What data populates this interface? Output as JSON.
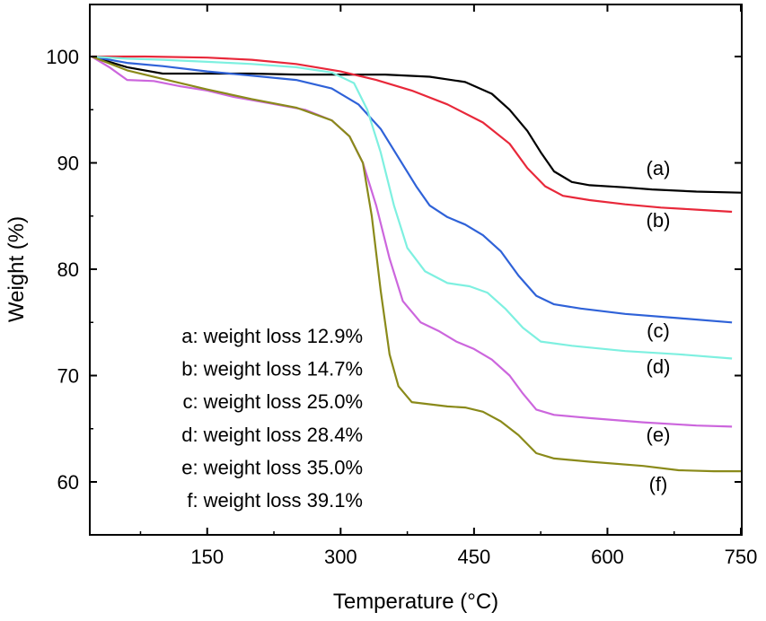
{
  "chart_data": {
    "type": "line",
    "xlabel": "Temperature (°C)",
    "ylabel": "Weight (%)",
    "xlim": [
      20,
      750
    ],
    "ylim": [
      57,
      105
    ],
    "xticks": [
      150,
      300,
      450,
      600,
      750
    ],
    "yticks": [
      60,
      70,
      80,
      90,
      100
    ],
    "grid": false,
    "series": [
      {
        "name": "(a)",
        "color": "#000000",
        "points": [
          [
            20,
            100
          ],
          [
            60,
            99
          ],
          [
            100,
            98.4
          ],
          [
            150,
            98.4
          ],
          [
            200,
            98.4
          ],
          [
            250,
            98.3
          ],
          [
            300,
            98.3
          ],
          [
            350,
            98.3
          ],
          [
            400,
            98.1
          ],
          [
            440,
            97.6
          ],
          [
            470,
            96.5
          ],
          [
            490,
            95
          ],
          [
            510,
            93
          ],
          [
            525,
            91
          ],
          [
            540,
            89.2
          ],
          [
            560,
            88.2
          ],
          [
            580,
            87.9
          ],
          [
            620,
            87.7
          ],
          [
            650,
            87.5
          ],
          [
            700,
            87.3
          ],
          [
            750,
            87.2
          ]
        ]
      },
      {
        "name": "(b)",
        "color": "#e8283a",
        "points": [
          [
            20,
            100
          ],
          [
            80,
            100
          ],
          [
            150,
            99.9
          ],
          [
            200,
            99.7
          ],
          [
            250,
            99.3
          ],
          [
            300,
            98.6
          ],
          [
            340,
            97.8
          ],
          [
            380,
            96.8
          ],
          [
            420,
            95.5
          ],
          [
            460,
            93.8
          ],
          [
            490,
            91.8
          ],
          [
            510,
            89.5
          ],
          [
            530,
            87.8
          ],
          [
            550,
            86.9
          ],
          [
            580,
            86.5
          ],
          [
            620,
            86.1
          ],
          [
            660,
            85.8
          ],
          [
            700,
            85.6
          ],
          [
            740,
            85.4
          ]
        ]
      },
      {
        "name": "(c)",
        "color": "#2f62d8",
        "points": [
          [
            20,
            100
          ],
          [
            60,
            99.4
          ],
          [
            100,
            99.1
          ],
          [
            150,
            98.6
          ],
          [
            200,
            98.2
          ],
          [
            250,
            97.8
          ],
          [
            290,
            97
          ],
          [
            320,
            95.5
          ],
          [
            345,
            93.2
          ],
          [
            365,
            90.5
          ],
          [
            385,
            87.8
          ],
          [
            400,
            86
          ],
          [
            420,
            84.9
          ],
          [
            440,
            84.2
          ],
          [
            460,
            83.2
          ],
          [
            480,
            81.7
          ],
          [
            500,
            79.4
          ],
          [
            520,
            77.5
          ],
          [
            540,
            76.7
          ],
          [
            570,
            76.3
          ],
          [
            620,
            75.8
          ],
          [
            680,
            75.4
          ],
          [
            740,
            75
          ]
        ]
      },
      {
        "name": "(d)",
        "color": "#7ef0e0",
        "points": [
          [
            20,
            100
          ],
          [
            60,
            99.8
          ],
          [
            100,
            99.7
          ],
          [
            150,
            99.5
          ],
          [
            200,
            99.3
          ],
          [
            250,
            99
          ],
          [
            290,
            98.5
          ],
          [
            315,
            97.5
          ],
          [
            330,
            95
          ],
          [
            345,
            91
          ],
          [
            360,
            86
          ],
          [
            375,
            82
          ],
          [
            395,
            79.8
          ],
          [
            420,
            78.7
          ],
          [
            445,
            78.4
          ],
          [
            465,
            77.8
          ],
          [
            485,
            76.3
          ],
          [
            505,
            74.5
          ],
          [
            525,
            73.2
          ],
          [
            560,
            72.8
          ],
          [
            620,
            72.3
          ],
          [
            680,
            72
          ],
          [
            740,
            71.6
          ]
        ]
      },
      {
        "name": "(e)",
        "color": "#cc66dd",
        "points": [
          [
            20,
            100
          ],
          [
            40,
            99
          ],
          [
            60,
            97.8
          ],
          [
            90,
            97.7
          ],
          [
            120,
            97.2
          ],
          [
            150,
            96.8
          ],
          [
            180,
            96.2
          ],
          [
            220,
            95.6
          ],
          [
            260,
            95
          ],
          [
            290,
            94
          ],
          [
            310,
            92.5
          ],
          [
            325,
            90
          ],
          [
            340,
            86
          ],
          [
            355,
            81
          ],
          [
            370,
            77
          ],
          [
            390,
            75
          ],
          [
            410,
            74.2
          ],
          [
            430,
            73.2
          ],
          [
            450,
            72.5
          ],
          [
            470,
            71.5
          ],
          [
            490,
            70
          ],
          [
            505,
            68.3
          ],
          [
            520,
            66.8
          ],
          [
            540,
            66.3
          ],
          [
            580,
            66
          ],
          [
            640,
            65.6
          ],
          [
            700,
            65.3
          ],
          [
            740,
            65.2
          ]
        ]
      },
      {
        "name": "(f)",
        "color": "#8a8a1a",
        "points": [
          [
            20,
            100
          ],
          [
            60,
            98.7
          ],
          [
            100,
            97.9
          ],
          [
            150,
            96.9
          ],
          [
            200,
            96
          ],
          [
            250,
            95.2
          ],
          [
            290,
            94
          ],
          [
            310,
            92.5
          ],
          [
            325,
            90
          ],
          [
            335,
            85
          ],
          [
            345,
            78
          ],
          [
            355,
            72
          ],
          [
            365,
            69
          ],
          [
            380,
            67.5
          ],
          [
            400,
            67.3
          ],
          [
            420,
            67.1
          ],
          [
            440,
            67
          ],
          [
            460,
            66.6
          ],
          [
            480,
            65.7
          ],
          [
            500,
            64.4
          ],
          [
            520,
            62.7
          ],
          [
            540,
            62.2
          ],
          [
            580,
            61.9
          ],
          [
            640,
            61.5
          ],
          [
            680,
            61.1
          ],
          [
            720,
            61
          ],
          [
            750,
            61
          ]
        ]
      }
    ],
    "annotations": [
      "a: weight loss 12.9%",
      "b: weight loss 14.7%",
      "c: weight loss 25.0%",
      "d: weight loss 28.4%",
      "e: weight loss 35.0%",
      "f: weight loss 39.1%"
    ]
  }
}
